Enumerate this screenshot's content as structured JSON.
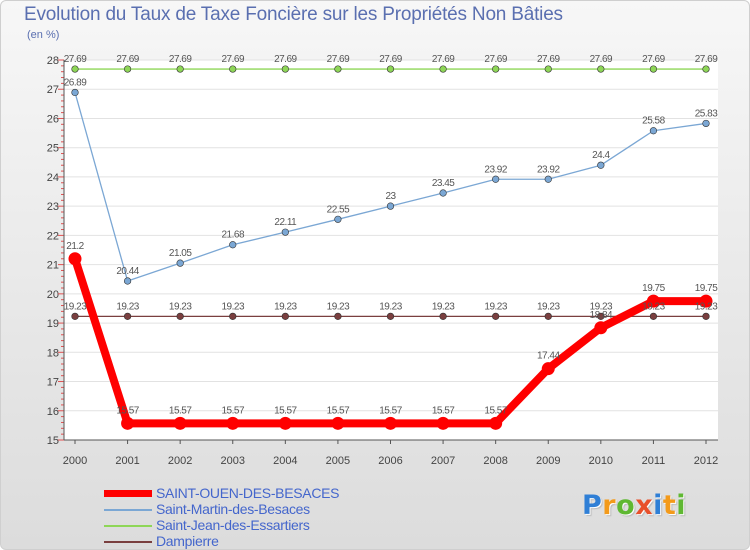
{
  "chart_data": {
    "type": "line",
    "title": "Evolution du Taux de Taxe Foncière sur les Propriétés Non Bâties",
    "ylabel": "(en %)",
    "xlabel": "",
    "x": [
      "2000",
      "2001",
      "2002",
      "2003",
      "2004",
      "2005",
      "2006",
      "2007",
      "2008",
      "2009",
      "2010",
      "2011",
      "2012"
    ],
    "yticks": [
      "15",
      "16",
      "17",
      "18",
      "19",
      "20",
      "21",
      "22",
      "23",
      "24",
      "25",
      "26",
      "27",
      "28"
    ],
    "ylim": [
      15,
      28
    ],
    "grid": "horizontal",
    "legend_position": "bottom-left",
    "series": [
      {
        "name": "Saint-Jean-des-Essartiers",
        "color": "#8ed657",
        "values": [
          27.69,
          27.69,
          27.69,
          27.69,
          27.69,
          27.69,
          27.69,
          27.69,
          27.69,
          27.69,
          27.69,
          27.69,
          27.69
        ],
        "labels": [
          "27.69",
          "27.69",
          "27.69",
          "27.69",
          "27.69",
          "27.69",
          "27.69",
          "27.69",
          "27.69",
          "27.69",
          "27.69",
          "27.69",
          "27.69"
        ]
      },
      {
        "name": "Saint-Martin-des-Besaces",
        "color": "#7ba7d4",
        "values": [
          26.89,
          20.44,
          21.05,
          21.68,
          22.11,
          22.55,
          23,
          23.45,
          23.92,
          23.92,
          24.4,
          25.58,
          25.83
        ],
        "labels": [
          "26.89",
          "20.44",
          "21.05",
          "21.68",
          "22.11",
          "22.55",
          "23",
          "23.45",
          "23.92",
          "23.92",
          "24.4",
          "25.58",
          "25.83"
        ]
      },
      {
        "name": "Dampierre",
        "color": "#7a3f3f",
        "values": [
          19.23,
          19.23,
          19.23,
          19.23,
          19.23,
          19.23,
          19.23,
          19.23,
          19.23,
          19.23,
          19.23,
          19.23,
          19.23
        ],
        "labels": [
          "19.23",
          "19.23",
          "19.23",
          "19.23",
          "19.23",
          "19.23",
          "19.23",
          "19.23",
          "19.23",
          "19.23",
          "19.23",
          "19.23",
          "19.23"
        ]
      },
      {
        "name": "SAINT-OUEN-DES-BESACES",
        "color": "#ff0000",
        "values": [
          21.2,
          15.57,
          15.57,
          15.57,
          15.57,
          15.57,
          15.57,
          15.57,
          15.57,
          17.44,
          18.84,
          19.75,
          19.75
        ],
        "labels": [
          "21.2",
          "15.57",
          "15.57",
          "15.57",
          "15.57",
          "15.57",
          "15.57",
          "15.57",
          "15.57",
          "17.44",
          "18.84",
          "19.75",
          "19.75"
        ]
      }
    ]
  },
  "legend": {
    "items": [
      {
        "label": "SAINT-OUEN-DES-BESACES",
        "color": "#ff0000"
      },
      {
        "label": "Saint-Martin-des-Besaces",
        "color": "#7ba7d4"
      },
      {
        "label": "Saint-Jean-des-Essartiers",
        "color": "#8ed657"
      },
      {
        "label": "Dampierre",
        "color": "#7a3f3f"
      }
    ]
  },
  "logo": {
    "letters": [
      {
        "ch": "P",
        "color": "#2f7fd6"
      },
      {
        "ch": "r",
        "color": "#f39a1a"
      },
      {
        "ch": "o",
        "color": "#5fb832"
      },
      {
        "ch": "x",
        "color": "#e8502a"
      },
      {
        "ch": "i",
        "color": "#2f7fd6"
      },
      {
        "ch": "t",
        "color": "#f39a1a"
      },
      {
        "ch": "i",
        "color": "#5fb832"
      }
    ]
  }
}
